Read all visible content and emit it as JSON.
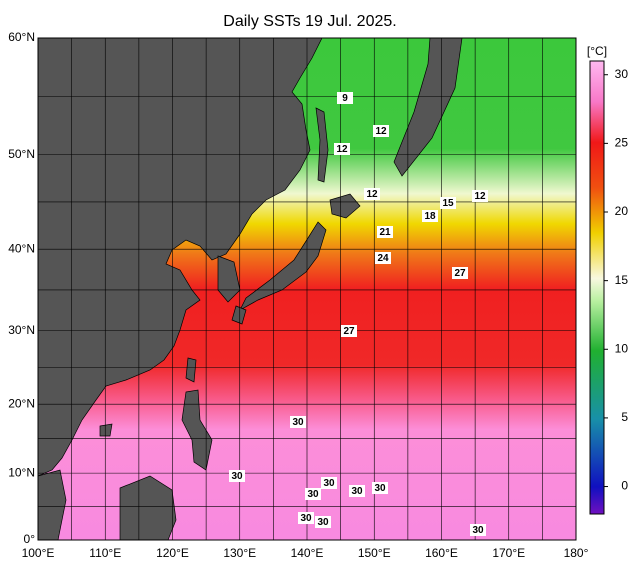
{
  "title": "Daily SSTs 19 Jul. 2025.",
  "map": {
    "lonlim": [
      100,
      180
    ],
    "latlim": [
      0,
      60
    ],
    "xticks": [
      {
        "value": 100,
        "label": "100°E"
      },
      {
        "value": 110,
        "label": "110°E"
      },
      {
        "value": 120,
        "label": "120°E"
      },
      {
        "value": 130,
        "label": "130°E"
      },
      {
        "value": 140,
        "label": "140°E"
      },
      {
        "value": 150,
        "label": "150°E"
      },
      {
        "value": 160,
        "label": "160°E"
      },
      {
        "value": 170,
        "label": "170°E"
      },
      {
        "value": 180,
        "label": "180°"
      }
    ],
    "yticks": [
      {
        "value": 0,
        "label": "0°"
      },
      {
        "value": 10,
        "label": "10°N"
      },
      {
        "value": 20,
        "label": "20°N"
      },
      {
        "value": 30,
        "label": "30°N"
      },
      {
        "value": 40,
        "label": "40°N"
      },
      {
        "value": 50,
        "label": "50°N"
      },
      {
        "value": 60,
        "label": "60°N"
      }
    ],
    "contour_labels": [
      "9",
      "12",
      "12",
      "12",
      "12",
      "15",
      "18",
      "21",
      "24",
      "27",
      "27",
      "30",
      "30",
      "30",
      "30",
      "30",
      "30",
      "30",
      "30",
      "30"
    ]
  },
  "colorbar": {
    "unit": "[°C]",
    "lim": [
      -2,
      31
    ],
    "ticks": [
      0,
      5,
      10,
      15,
      20,
      25,
      30
    ]
  }
}
